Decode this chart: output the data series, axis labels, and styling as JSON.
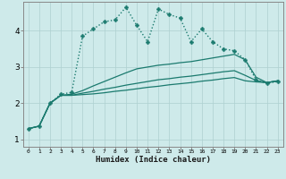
{
  "xlabel": "Humidex (Indice chaleur)",
  "background_color": "#ceeaea",
  "grid_color": "#aed0d0",
  "line_color": "#1a7a6e",
  "xlim": [
    -0.5,
    23.5
  ],
  "ylim": [
    0.8,
    4.8
  ],
  "xticks": [
    0,
    1,
    2,
    3,
    4,
    5,
    6,
    7,
    8,
    9,
    10,
    11,
    12,
    13,
    14,
    15,
    16,
    17,
    18,
    19,
    20,
    21,
    22,
    23
  ],
  "yticks": [
    1,
    2,
    3,
    4
  ],
  "series": [
    {
      "x": [
        0,
        1,
        2,
        3,
        4,
        5,
        6,
        7,
        8,
        9,
        10,
        11,
        12,
        13,
        14,
        15,
        16,
        17,
        18,
        19,
        20,
        21,
        22,
        23
      ],
      "y": [
        1.3,
        1.37,
        2.0,
        2.25,
        2.3,
        3.85,
        4.05,
        4.25,
        4.3,
        4.65,
        4.15,
        3.7,
        4.6,
        4.45,
        4.35,
        3.7,
        4.05,
        3.7,
        3.5,
        3.45,
        3.2,
        2.65,
        2.55,
        2.6
      ],
      "style": "dotted",
      "marker": "P",
      "markersize": 2.8,
      "linewidth": 1.0
    },
    {
      "x": [
        0,
        1,
        2,
        3,
        4,
        5,
        6,
        7,
        8,
        9,
        10,
        11,
        12,
        13,
        14,
        15,
        16,
        17,
        18,
        19,
        20,
        21,
        22,
        23
      ],
      "y": [
        1.3,
        1.37,
        2.0,
        2.22,
        2.25,
        2.35,
        2.48,
        2.6,
        2.72,
        2.84,
        2.95,
        3.0,
        3.05,
        3.08,
        3.12,
        3.15,
        3.2,
        3.25,
        3.3,
        3.35,
        3.2,
        2.72,
        2.57,
        2.62
      ],
      "style": "solid",
      "marker": null,
      "markersize": 0,
      "linewidth": 0.9
    },
    {
      "x": [
        0,
        1,
        2,
        3,
        4,
        5,
        6,
        7,
        8,
        9,
        10,
        11,
        12,
        13,
        14,
        15,
        16,
        17,
        18,
        19,
        20,
        21,
        22,
        23
      ],
      "y": [
        1.3,
        1.37,
        2.0,
        2.22,
        2.22,
        2.28,
        2.33,
        2.39,
        2.44,
        2.5,
        2.55,
        2.6,
        2.65,
        2.68,
        2.72,
        2.75,
        2.79,
        2.83,
        2.87,
        2.9,
        2.77,
        2.63,
        2.57,
        2.62
      ],
      "style": "solid",
      "marker": null,
      "markersize": 0,
      "linewidth": 0.9
    },
    {
      "x": [
        0,
        1,
        2,
        3,
        4,
        5,
        6,
        7,
        8,
        9,
        10,
        11,
        12,
        13,
        14,
        15,
        16,
        17,
        18,
        19,
        20,
        21,
        22,
        23
      ],
      "y": [
        1.3,
        1.37,
        2.0,
        2.22,
        2.22,
        2.24,
        2.26,
        2.29,
        2.33,
        2.36,
        2.4,
        2.44,
        2.47,
        2.51,
        2.54,
        2.57,
        2.61,
        2.64,
        2.68,
        2.71,
        2.62,
        2.59,
        2.57,
        2.62
      ],
      "style": "solid",
      "marker": null,
      "markersize": 0,
      "linewidth": 0.9
    }
  ],
  "figsize": [
    3.2,
    2.0
  ],
  "dpi": 100
}
